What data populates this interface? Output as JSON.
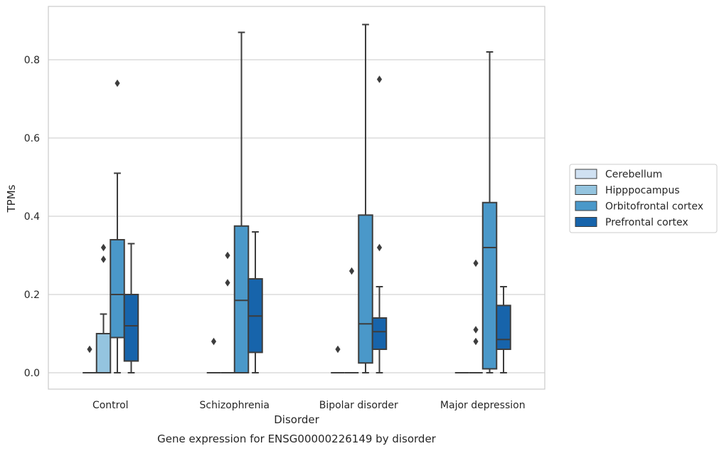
{
  "chart_data": {
    "type": "box",
    "xlabel": "Disorder",
    "ylabel": "TPMs",
    "caption": "Gene expression for ENSG00000226149 by disorder",
    "ylim": [
      -0.044,
      0.94
    ],
    "yticks": [
      0.0,
      0.2,
      0.4,
      0.6,
      0.8
    ],
    "grid": "horizontal",
    "legend_position": "right",
    "categories": [
      "Control",
      "Schizophrenia",
      "Bipolar disorder",
      "Major depression"
    ],
    "series": [
      {
        "name": "Cerebellum",
        "color": "#d0e1f2",
        "boxes": [
          {
            "min": 0.0,
            "q1": 0.0,
            "median": 0.0,
            "q3": 0.0,
            "max": 0.0,
            "outliers": [
              0.06
            ]
          },
          {
            "min": 0.0,
            "q1": 0.0,
            "median": 0.0,
            "q3": 0.0,
            "max": 0.0,
            "outliers": [
              0.08
            ]
          },
          {
            "min": 0.0,
            "q1": 0.0,
            "median": 0.0,
            "q3": 0.0,
            "max": 0.0,
            "outliers": [
              0.06
            ]
          },
          {
            "min": 0.0,
            "q1": 0.0,
            "median": 0.0,
            "q3": 0.0,
            "max": 0.0,
            "outliers": []
          }
        ]
      },
      {
        "name": "Hipppocampus",
        "color": "#94c4df",
        "boxes": [
          {
            "min": 0.0,
            "q1": 0.0,
            "median": 0.0,
            "q3": 0.1,
            "max": 0.15,
            "outliers": [
              0.29,
              0.32
            ]
          },
          {
            "min": 0.0,
            "q1": 0.0,
            "median": 0.0,
            "q3": 0.0,
            "max": 0.0,
            "outliers": [
              0.23,
              0.3
            ]
          },
          {
            "min": 0.0,
            "q1": 0.0,
            "median": 0.0,
            "q3": 0.0,
            "max": 0.0,
            "outliers": [
              0.26
            ]
          },
          {
            "min": 0.0,
            "q1": 0.0,
            "median": 0.0,
            "q3": 0.0,
            "max": 0.0,
            "outliers": [
              0.08,
              0.11,
              0.28
            ]
          }
        ]
      },
      {
        "name": "Orbitofrontal cortex",
        "color": "#4a98c9",
        "boxes": [
          {
            "min": 0.0,
            "q1": 0.09,
            "median": 0.2,
            "q3": 0.34,
            "max": 0.51,
            "outliers": [
              0.74
            ]
          },
          {
            "min": 0.0,
            "q1": 0.0,
            "median": 0.185,
            "q3": 0.375,
            "max": 0.87,
            "outliers": []
          },
          {
            "min": 0.0,
            "q1": 0.025,
            "median": 0.125,
            "q3": 0.403,
            "max": 0.89,
            "outliers": []
          },
          {
            "min": 0.0,
            "q1": 0.01,
            "median": 0.32,
            "q3": 0.435,
            "max": 0.82,
            "outliers": []
          }
        ]
      },
      {
        "name": "Prefrontal cortex",
        "color": "#1764ab",
        "boxes": [
          {
            "min": 0.0,
            "q1": 0.03,
            "median": 0.12,
            "q3": 0.2,
            "max": 0.33,
            "outliers": []
          },
          {
            "min": 0.0,
            "q1": 0.052,
            "median": 0.145,
            "q3": 0.24,
            "max": 0.36,
            "outliers": []
          },
          {
            "min": 0.0,
            "q1": 0.06,
            "median": 0.105,
            "q3": 0.14,
            "max": 0.22,
            "outliers": [
              0.32,
              0.75
            ]
          },
          {
            "min": 0.0,
            "q1": 0.06,
            "median": 0.085,
            "q3": 0.172,
            "max": 0.22,
            "outliers": []
          }
        ]
      }
    ]
  }
}
